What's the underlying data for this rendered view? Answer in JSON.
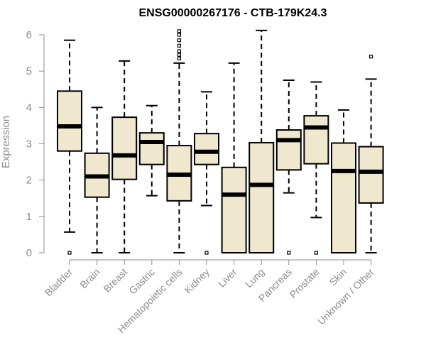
{
  "chart_data": {
    "type": "boxplot",
    "title": "ENSG00000267176 - CTB-179K24.3",
    "xlabel": "",
    "ylabel": "Expression",
    "ylim": [
      0,
      6
    ],
    "yticks": [
      0,
      1,
      2,
      3,
      4,
      5,
      6
    ],
    "grid": false,
    "colors": {
      "box_fill": "#efe8cf",
      "stroke": "#000000",
      "axis": "#8c8c8c"
    },
    "categories": [
      "Bladder",
      "Brain",
      "Breast",
      "Gastric",
      "Hematopoietic cells",
      "Kidney",
      "Liver",
      "Lung",
      "Pancreas",
      "Prostate",
      "Skin",
      "Unknown / Other"
    ],
    "boxes": [
      {
        "category": "Bladder",
        "whisker_low": 0.57,
        "q1": 2.8,
        "median": 3.48,
        "q3": 4.45,
        "whisker_high": 5.85,
        "outliers": [
          0.0
        ]
      },
      {
        "category": "Brain",
        "whisker_low": 0.0,
        "q1": 1.53,
        "median": 2.1,
        "q3": 2.74,
        "whisker_high": 4.0,
        "outliers": []
      },
      {
        "category": "Breast",
        "whisker_low": 0.0,
        "q1": 2.02,
        "median": 2.68,
        "q3": 3.73,
        "whisker_high": 5.28,
        "outliers": []
      },
      {
        "category": "Gastric",
        "whisker_low": 1.57,
        "q1": 2.43,
        "median": 3.05,
        "q3": 3.3,
        "whisker_high": 4.05,
        "outliers": []
      },
      {
        "category": "Hematopoietic cells",
        "whisker_low": 0.0,
        "q1": 1.43,
        "median": 2.15,
        "q3": 2.95,
        "whisker_high": 5.22,
        "outliers": [
          5.35,
          5.45,
          5.55,
          5.7,
          5.85,
          6.0,
          6.1
        ]
      },
      {
        "category": "Kidney",
        "whisker_low": 1.3,
        "q1": 2.43,
        "median": 2.78,
        "q3": 3.28,
        "whisker_high": 4.43,
        "outliers": [
          0.0
        ]
      },
      {
        "category": "Liver",
        "whisker_low": 0.0,
        "q1": 0.0,
        "median": 1.6,
        "q3": 2.35,
        "whisker_high": 5.22,
        "outliers": []
      },
      {
        "category": "Lung",
        "whisker_low": 0.0,
        "q1": 0.0,
        "median": 1.87,
        "q3": 3.03,
        "whisker_high": 6.12,
        "outliers": []
      },
      {
        "category": "Pancreas",
        "whisker_low": 1.65,
        "q1": 2.28,
        "median": 3.1,
        "q3": 3.38,
        "whisker_high": 4.75,
        "outliers": [
          0.0
        ]
      },
      {
        "category": "Prostate",
        "whisker_low": 0.97,
        "q1": 2.45,
        "median": 3.45,
        "q3": 3.77,
        "whisker_high": 4.7,
        "outliers": [
          0.0
        ]
      },
      {
        "category": "Skin",
        "whisker_low": 0.0,
        "q1": 0.0,
        "median": 2.25,
        "q3": 3.02,
        "whisker_high": 3.93,
        "outliers": []
      },
      {
        "category": "Unknown / Other",
        "whisker_low": 0.0,
        "q1": 1.37,
        "median": 2.23,
        "q3": 2.92,
        "whisker_high": 4.78,
        "outliers": [
          5.4
        ]
      }
    ]
  }
}
